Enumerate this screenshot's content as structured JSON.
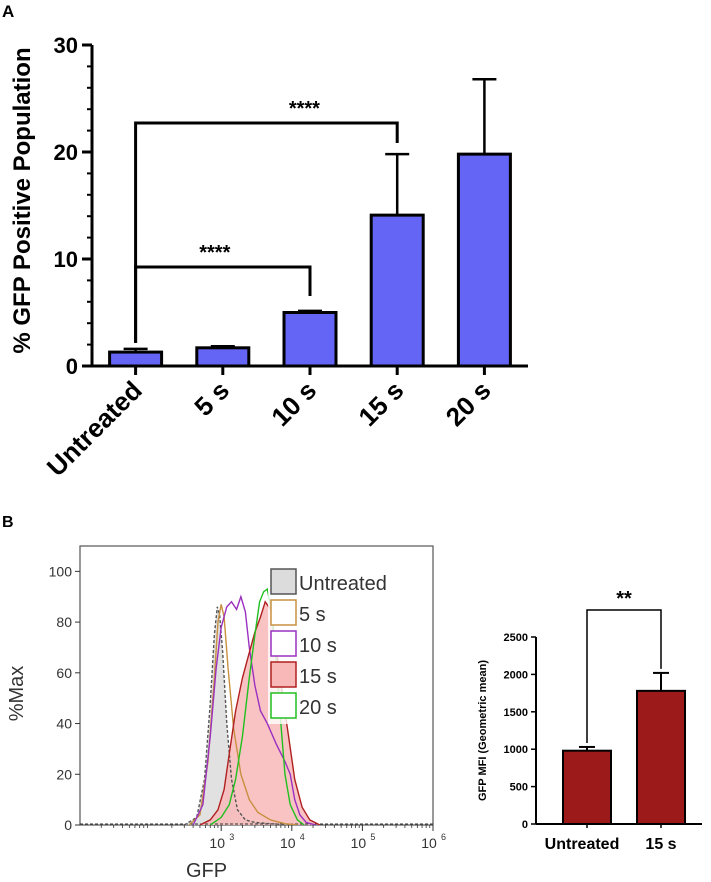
{
  "panel_a_label": "A",
  "panel_b_label": "B",
  "chart_data": [
    {
      "id": "A",
      "type": "bar",
      "title": "",
      "ylabel": "% GFP Positive Population",
      "xlabel": "",
      "categories": [
        "Untreated",
        "5 s",
        "10 s",
        "15 s",
        "20 s"
      ],
      "values": [
        1.3,
        1.7,
        5.0,
        14.1,
        19.8
      ],
      "errors": [
        0.3,
        0.15,
        0.15,
        5.7,
        7.0
      ],
      "ylim": [
        0,
        30
      ],
      "yticks": [
        0,
        10,
        20,
        30
      ],
      "bar_color": "#6565f5",
      "significance": [
        {
          "from": "Untreated",
          "to": "10 s",
          "label": "****"
        },
        {
          "from": "Untreated",
          "to": "15 s",
          "label": "****"
        }
      ]
    },
    {
      "id": "B-left",
      "type": "line",
      "title": "",
      "xlabel": "GFP",
      "ylabel": "%Max",
      "xscale": "log",
      "xlim": [
        10,
        1000000
      ],
      "ylim": [
        0,
        110
      ],
      "yticks": [
        0,
        20,
        40,
        60,
        80,
        100
      ],
      "xticks": [
        {
          "value": 1000,
          "label": "10",
          "exp": "3"
        },
        {
          "value": 10000,
          "label": "10",
          "exp": "4"
        },
        {
          "value": 100000,
          "label": "10",
          "exp": "5"
        },
        {
          "value": 1000000,
          "label": "10",
          "exp": "6"
        }
      ],
      "series": [
        {
          "name": "Untreated",
          "color": "#555555",
          "fill": "#dcdcdc",
          "dashed": true,
          "x": [
            300,
            450,
            580,
            700,
            800,
            880,
            950,
            1050,
            1200,
            1400,
            1700,
            2200,
            3000,
            5000,
            10000
          ],
          "y": [
            0,
            3,
            18,
            48,
            75,
            86,
            83,
            68,
            40,
            18,
            6,
            2,
            1,
            0.5,
            0
          ]
        },
        {
          "name": "5 s",
          "color": "#c89040",
          "fill": "none",
          "dashed": false,
          "x": [
            350,
            500,
            650,
            800,
            900,
            1000,
            1100,
            1250,
            1500,
            1900,
            2500,
            3300,
            5000,
            8000,
            12000
          ],
          "y": [
            0,
            4,
            25,
            58,
            80,
            87,
            82,
            62,
            38,
            20,
            10,
            5,
            2,
            0.5,
            0
          ]
        },
        {
          "name": "10 s",
          "color": "#9b30c0",
          "fill": "none",
          "dashed": false,
          "x": [
            400,
            550,
            700,
            850,
            1000,
            1200,
            1400,
            1650,
            1900,
            2200,
            2500,
            3000,
            3600,
            4500,
            6000,
            8000,
            9500,
            11000,
            13000,
            16000,
            22000
          ],
          "y": [
            0,
            8,
            35,
            62,
            78,
            86,
            88,
            85,
            90,
            84,
            70,
            55,
            45,
            40,
            32,
            25,
            20,
            10,
            4,
            1,
            0
          ]
        },
        {
          "name": "15 s",
          "color": "#b02020",
          "fill": "#f8b8b8",
          "dashed": false,
          "x": [
            500,
            700,
            900,
            1100,
            1300,
            1600,
            2000,
            2500,
            3000,
            3600,
            4200,
            5000,
            6000,
            7500,
            9000,
            11000,
            14000,
            18000,
            25000
          ],
          "y": [
            0,
            2,
            6,
            14,
            28,
            45,
            58,
            68,
            76,
            82,
            88,
            85,
            70,
            50,
            35,
            18,
            7,
            2,
            0
          ]
        },
        {
          "name": "20 s",
          "color": "#20c020",
          "fill": "none",
          "dashed": false,
          "x": [
            700,
            1000,
            1300,
            1600,
            2000,
            2500,
            3000,
            3500,
            4000,
            4500,
            5100,
            6000,
            7000,
            8000,
            9500,
            12000,
            15000
          ],
          "y": [
            0,
            3,
            8,
            18,
            35,
            58,
            75,
            88,
            92,
            93,
            85,
            65,
            40,
            20,
            8,
            2,
            0
          ]
        }
      ]
    },
    {
      "id": "B-right",
      "type": "bar",
      "title": "",
      "ylabel": "GFP MFI (Geometric mean)",
      "xlabel": "",
      "categories": [
        "Untreated",
        "15 s"
      ],
      "values": [
        980,
        1780
      ],
      "errors": [
        50,
        240
      ],
      "ylim": [
        0,
        2500
      ],
      "yticks": [
        0,
        500,
        1000,
        1500,
        2000,
        2500
      ],
      "bar_color": "#9c1a1a",
      "significance": [
        {
          "from": "Untreated",
          "to": "15 s",
          "label": "**"
        }
      ]
    }
  ]
}
